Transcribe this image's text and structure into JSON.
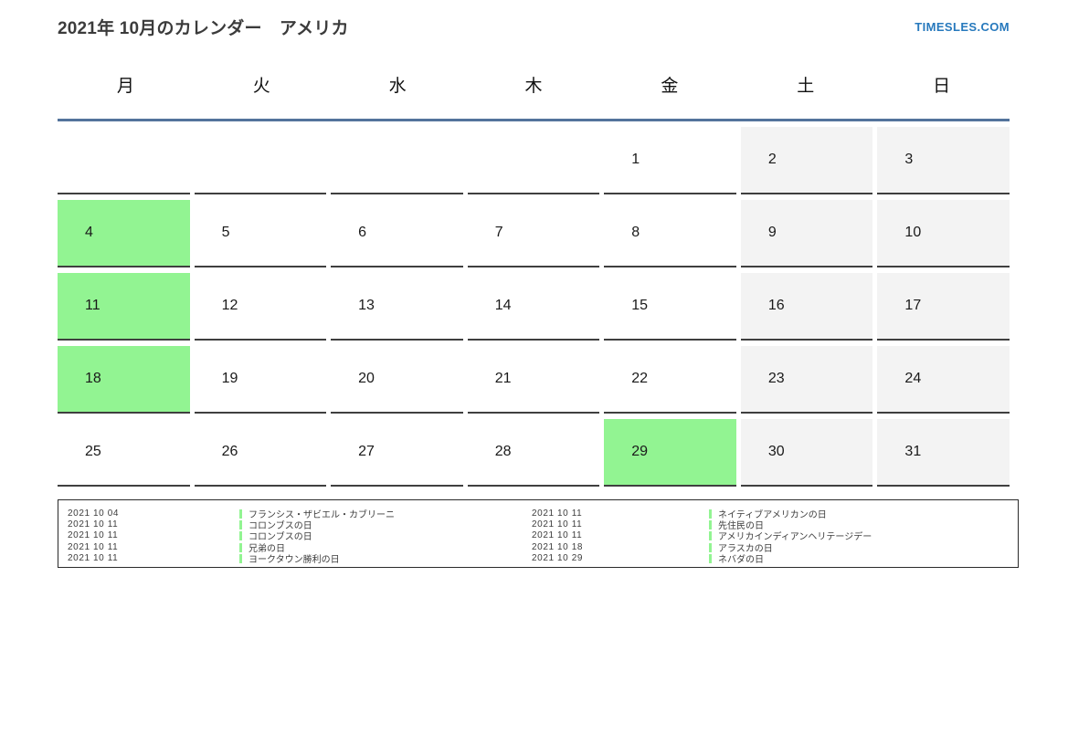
{
  "page": {
    "title": "2021年 10月のカレンダー　アメリカ",
    "brand": "TIMESLES.COM"
  },
  "colors": {
    "holiday_green": "#92f492",
    "weekend_gray": "#f3f3f3",
    "header_line_blue": "#53739c",
    "brand_blue": "#2779bd",
    "cell_border": "#3f3f3f"
  },
  "calendar": {
    "weekday_headers": [
      "月",
      "火",
      "水",
      "木",
      "金",
      "土",
      "日"
    ],
    "weekend_columns": [
      5,
      6
    ],
    "weeks": [
      [
        "",
        "",
        "",
        "",
        "1",
        "2",
        "3"
      ],
      [
        "4",
        "5",
        "6",
        "7",
        "8",
        "9",
        "10"
      ],
      [
        "11",
        "12",
        "13",
        "14",
        "15",
        "16",
        "17"
      ],
      [
        "18",
        "19",
        "20",
        "21",
        "22",
        "23",
        "24"
      ],
      [
        "25",
        "26",
        "27",
        "28",
        "29",
        "30",
        "31"
      ]
    ],
    "holiday_days": [
      4,
      11,
      18,
      29
    ]
  },
  "legend": {
    "left": [
      {
        "date": "2021 10 04",
        "name": "フランシス・ザビエル・カブリーニ"
      },
      {
        "date": "2021 10 11",
        "name": "コロンブスの日"
      },
      {
        "date": "2021 10 11",
        "name": "コロンブスの日"
      },
      {
        "date": "2021 10 11",
        "name": "兄弟の日"
      },
      {
        "date": "2021 10 11",
        "name": "ヨークタウン勝利の日"
      }
    ],
    "right": [
      {
        "date": "2021 10 11",
        "name": "ネイティブアメリカンの日"
      },
      {
        "date": "2021 10 11",
        "name": "先住民の日"
      },
      {
        "date": "2021 10 11",
        "name": "アメリカインディアンヘリテージデー"
      },
      {
        "date": "2021 10 18",
        "name": "アラスカの日"
      },
      {
        "date": "2021 10 29",
        "name": "ネバダの日"
      }
    ]
  }
}
